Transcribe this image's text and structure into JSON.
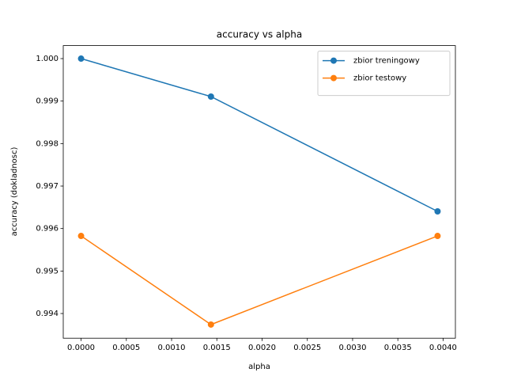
{
  "chart_data": {
    "type": "line",
    "title": "accuracy vs alpha",
    "xlabel": "alpha",
    "ylabel": "accuracy (dokladnosc)",
    "x": [
      0,
      0.001435,
      0.003939
    ],
    "series": [
      {
        "name": "zbior treningowy",
        "color": "#1f77b4",
        "values": [
          1.0,
          0.999106,
          0.996404
        ]
      },
      {
        "name": "zbior testowy",
        "color": "#ff7f0e",
        "values": [
          0.995826,
          0.99374,
          0.995826
        ]
      }
    ],
    "xlim": [
      -0.000197,
      0.004136
    ],
    "ylim": [
      0.993419,
      1.000306
    ],
    "xticks": [
      {
        "value": 0,
        "label": "0.0000"
      },
      {
        "value": 0.0005,
        "label": "0.0005"
      },
      {
        "value": 0.001,
        "label": "0.0010"
      },
      {
        "value": 0.0015,
        "label": "0.0015"
      },
      {
        "value": 0.002,
        "label": "0.0020"
      },
      {
        "value": 0.0025,
        "label": "0.0025"
      },
      {
        "value": 0.003,
        "label": "0.0030"
      },
      {
        "value": 0.0035,
        "label": "0.0035"
      },
      {
        "value": 0.004,
        "label": "0.0040"
      }
    ],
    "yticks": [
      {
        "value": 0.994,
        "label": "0.994"
      },
      {
        "value": 0.995,
        "label": "0.995"
      },
      {
        "value": 0.996,
        "label": "0.996"
      },
      {
        "value": 0.997,
        "label": "0.997"
      },
      {
        "value": 0.998,
        "label": "0.998"
      },
      {
        "value": 0.999,
        "label": "0.999"
      },
      {
        "value": 1.0,
        "label": "1.000"
      }
    ],
    "legend": "upper right",
    "grid": false
  }
}
